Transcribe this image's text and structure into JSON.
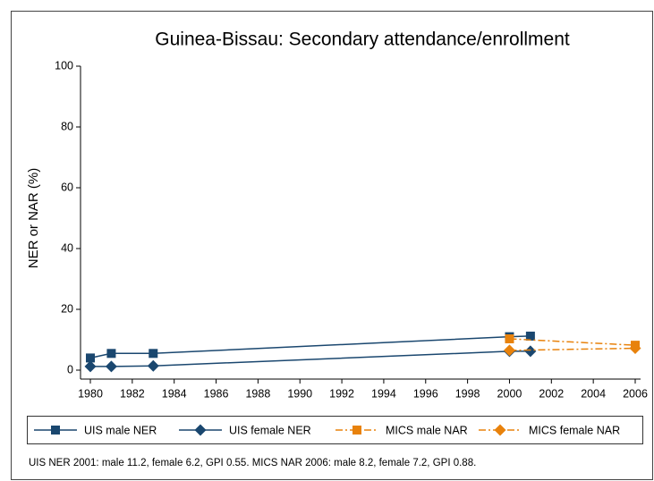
{
  "chart_data": {
    "type": "line",
    "title": "Guinea-Bissau: Secondary attendance/enrollment",
    "y_label": "NER or NAR (%)",
    "note": "UIS NER 2001: male 11.2, female 6.2, GPI 0.55. MICS NAR 2006: male 8.2, female 7.2, GPI 0.88.",
    "xlim": [
      1980,
      2006
    ],
    "xticks": [
      1980,
      1982,
      1984,
      1986,
      1988,
      1990,
      1992,
      1994,
      1996,
      1998,
      2000,
      2002,
      2004,
      2006
    ],
    "ylim": [
      0,
      100
    ],
    "yticks": [
      0,
      20,
      40,
      60,
      80,
      100
    ],
    "legend": "bottom",
    "series": [
      {
        "name": "UIS male NER",
        "color": "#1a476f",
        "marker": "square",
        "dash": "solid",
        "x": [
          1980,
          1981,
          1983,
          2000,
          2001
        ],
        "values": [
          4,
          5.5,
          5.5,
          11,
          11.2
        ]
      },
      {
        "name": "UIS female NER",
        "color": "#1a476f",
        "marker": "diamond",
        "dash": "solid",
        "x": [
          1980,
          1981,
          1983,
          2000,
          2001
        ],
        "values": [
          1.2,
          1.2,
          1.4,
          6.2,
          6.2
        ]
      },
      {
        "name": "MICS male NAR",
        "color": "#e8820c",
        "marker": "square",
        "dash": "dashdot",
        "x": [
          2000,
          2006
        ],
        "values": [
          10.3,
          8.2
        ]
      },
      {
        "name": "MICS female NAR",
        "color": "#e8820c",
        "marker": "diamond",
        "dash": "dashdot",
        "x": [
          2000,
          2006
        ],
        "values": [
          6.5,
          7.2
        ]
      }
    ]
  }
}
